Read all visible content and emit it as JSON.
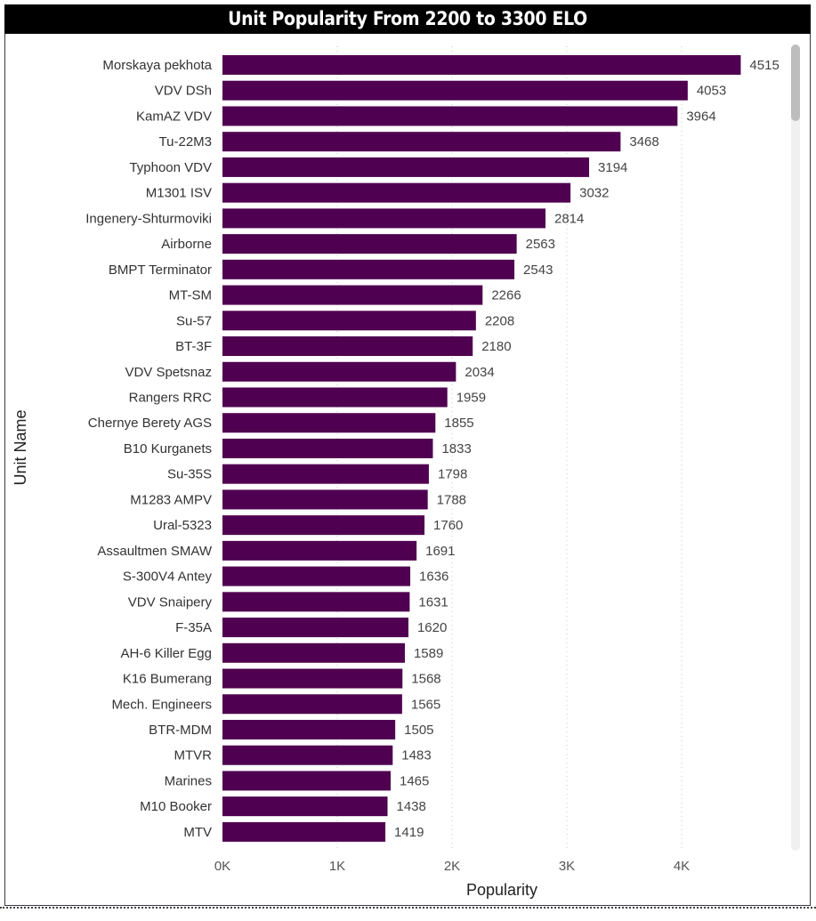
{
  "chart_data": {
    "type": "bar",
    "orientation": "horizontal",
    "title": "Unit Popularity From 2200 to 3300 ELO",
    "xlabel": "Popularity",
    "ylabel": "Unit Name",
    "xlim": [
      0,
      4700
    ],
    "xticks": [
      0,
      1000,
      2000,
      3000,
      4000
    ],
    "xtick_labels": [
      "0K",
      "1K",
      "2K",
      "3K",
      "4K"
    ],
    "grid": "vertical dotted",
    "bar_color": "#4F0050",
    "categories": [
      "Morskaya pekhota",
      "VDV DSh",
      "KamAZ VDV",
      "Tu-22M3",
      "Typhoon VDV",
      "M1301 ISV",
      "Ingenery-Shturmoviki",
      "Airborne",
      "BMPT Terminator",
      "MT-SM",
      "Su-57",
      "BT-3F",
      "VDV Spetsnaz",
      "Rangers RRC",
      "Chernye Berety AGS",
      "B10 Kurganets",
      "Su-35S",
      "M1283 AMPV",
      "Ural-5323",
      "Assaultmen SMAW",
      "S-300V4 Antey",
      "VDV Snaipery",
      "F-35A",
      "AH-6 Killer Egg",
      "K16 Bumerang",
      "Mech. Engineers",
      "BTR-MDM",
      "MTVR",
      "Marines",
      "M10 Booker",
      "MTV"
    ],
    "values": [
      4515,
      4053,
      3964,
      3468,
      3194,
      3032,
      2814,
      2563,
      2543,
      2266,
      2208,
      2180,
      2034,
      1959,
      1855,
      1833,
      1798,
      1788,
      1760,
      1691,
      1636,
      1631,
      1620,
      1589,
      1568,
      1565,
      1505,
      1483,
      1465,
      1438,
      1419
    ]
  }
}
